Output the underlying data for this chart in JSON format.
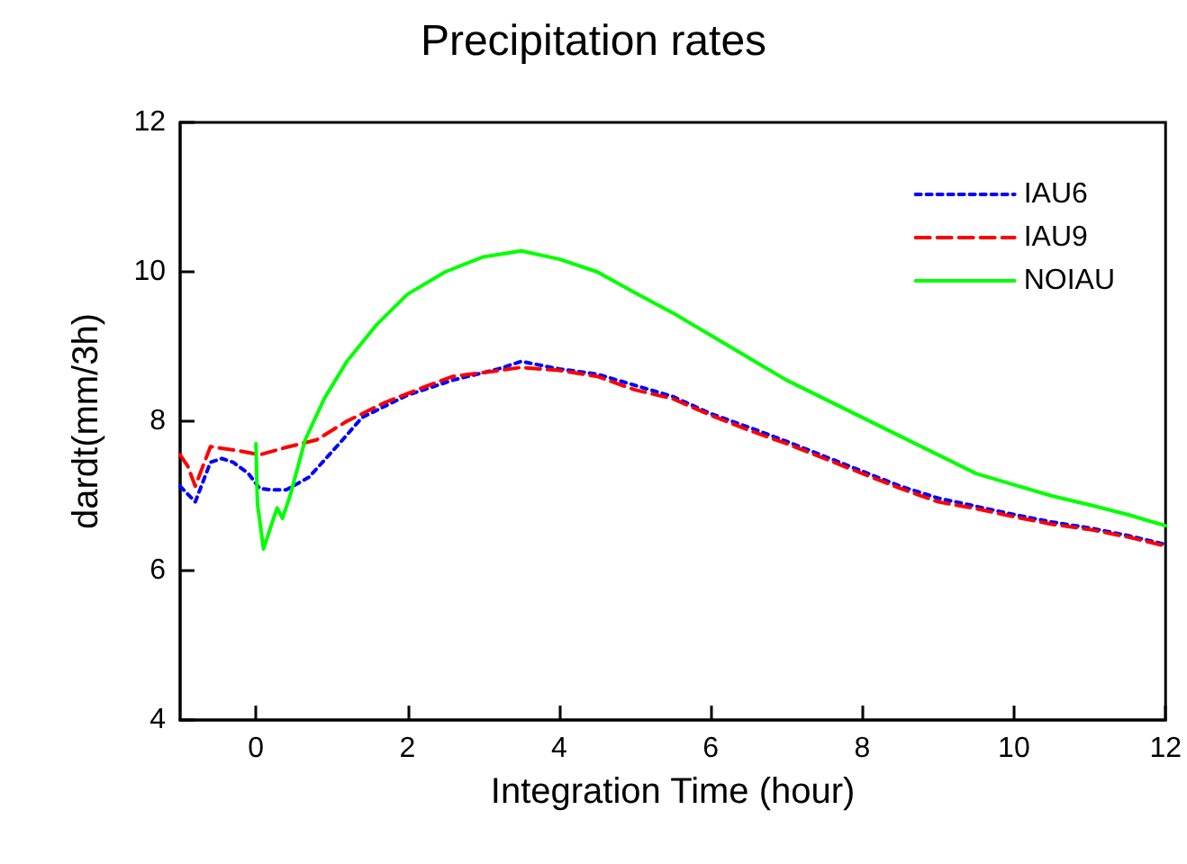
{
  "chart_data": {
    "type": "line",
    "title": "Precipitation rates",
    "xlabel": "Integration Time (hour)",
    "ylabel": "dardt(mm/3h)",
    "xlim": [
      -1,
      12
    ],
    "xticks": [
      0,
      2,
      4,
      6,
      8,
      10,
      12
    ],
    "ylim": [
      4,
      12
    ],
    "yticks": [
      4,
      6,
      8,
      10,
      12
    ],
    "grid": false,
    "legend": "top right",
    "marker": "none",
    "series": [
      {
        "name": "IAU6",
        "color": "#0000ff",
        "line_style": "dotted",
        "x": [
          -1,
          -0.8,
          -0.6,
          -0.45,
          -0.3,
          -0.1,
          0.05,
          0.2,
          0.4,
          0.7,
          1.1,
          1.4,
          2,
          2.6,
          3.2,
          3.5,
          4,
          4.5,
          5,
          5.5,
          6,
          6.5,
          7,
          7.5,
          8,
          8.5,
          9,
          9.5,
          10,
          10.5,
          11,
          11.5,
          12
        ],
        "values": [
          7.13,
          6.92,
          7.45,
          7.5,
          7.45,
          7.3,
          7.1,
          7.08,
          7.08,
          7.25,
          7.7,
          8.05,
          8.35,
          8.55,
          8.7,
          8.8,
          8.7,
          8.63,
          8.48,
          8.33,
          8.1,
          7.92,
          7.73,
          7.53,
          7.33,
          7.13,
          6.97,
          6.86,
          6.75,
          6.65,
          6.57,
          6.47,
          6.35
        ]
      },
      {
        "name": "IAU9",
        "color": "#ff0000",
        "line_style": "dashed",
        "x": [
          -1,
          -0.9,
          -0.8,
          -0.6,
          -0.2,
          0.05,
          0.4,
          0.8,
          1.2,
          1.7,
          2.2,
          2.6,
          3,
          3.5,
          4,
          4.5,
          5,
          5.5,
          6,
          6.5,
          7,
          7.5,
          8,
          8.5,
          9,
          9.5,
          10,
          10.5,
          11,
          11.5,
          12
        ],
        "values": [
          7.55,
          7.4,
          7.13,
          7.66,
          7.6,
          7.55,
          7.65,
          7.75,
          8.0,
          8.25,
          8.45,
          8.6,
          8.65,
          8.72,
          8.68,
          8.6,
          8.42,
          8.3,
          8.08,
          7.88,
          7.7,
          7.5,
          7.3,
          7.1,
          6.92,
          6.83,
          6.72,
          6.62,
          6.55,
          6.45,
          6.33
        ]
      },
      {
        "name": "NOIAU",
        "color": "#00ff00",
        "line_style": "solid",
        "x": [
          0,
          0.02,
          0.1,
          0.2,
          0.28,
          0.35,
          0.45,
          0.65,
          0.9,
          1.2,
          1.6,
          2,
          2.5,
          3,
          3.5,
          4,
          4.5,
          5,
          5.5,
          6,
          6.5,
          7,
          7.5,
          8,
          8.5,
          9,
          9.5,
          10,
          10.5,
          11,
          11.5,
          12
        ],
        "values": [
          7.7,
          6.9,
          6.29,
          6.6,
          6.84,
          6.7,
          7.0,
          7.75,
          8.3,
          8.8,
          9.3,
          9.7,
          10.0,
          10.2,
          10.28,
          10.17,
          10.0,
          9.72,
          9.45,
          9.15,
          8.85,
          8.55,
          8.3,
          8.05,
          7.8,
          7.55,
          7.3,
          7.15,
          7.0,
          6.88,
          6.75,
          6.6
        ]
      }
    ]
  }
}
